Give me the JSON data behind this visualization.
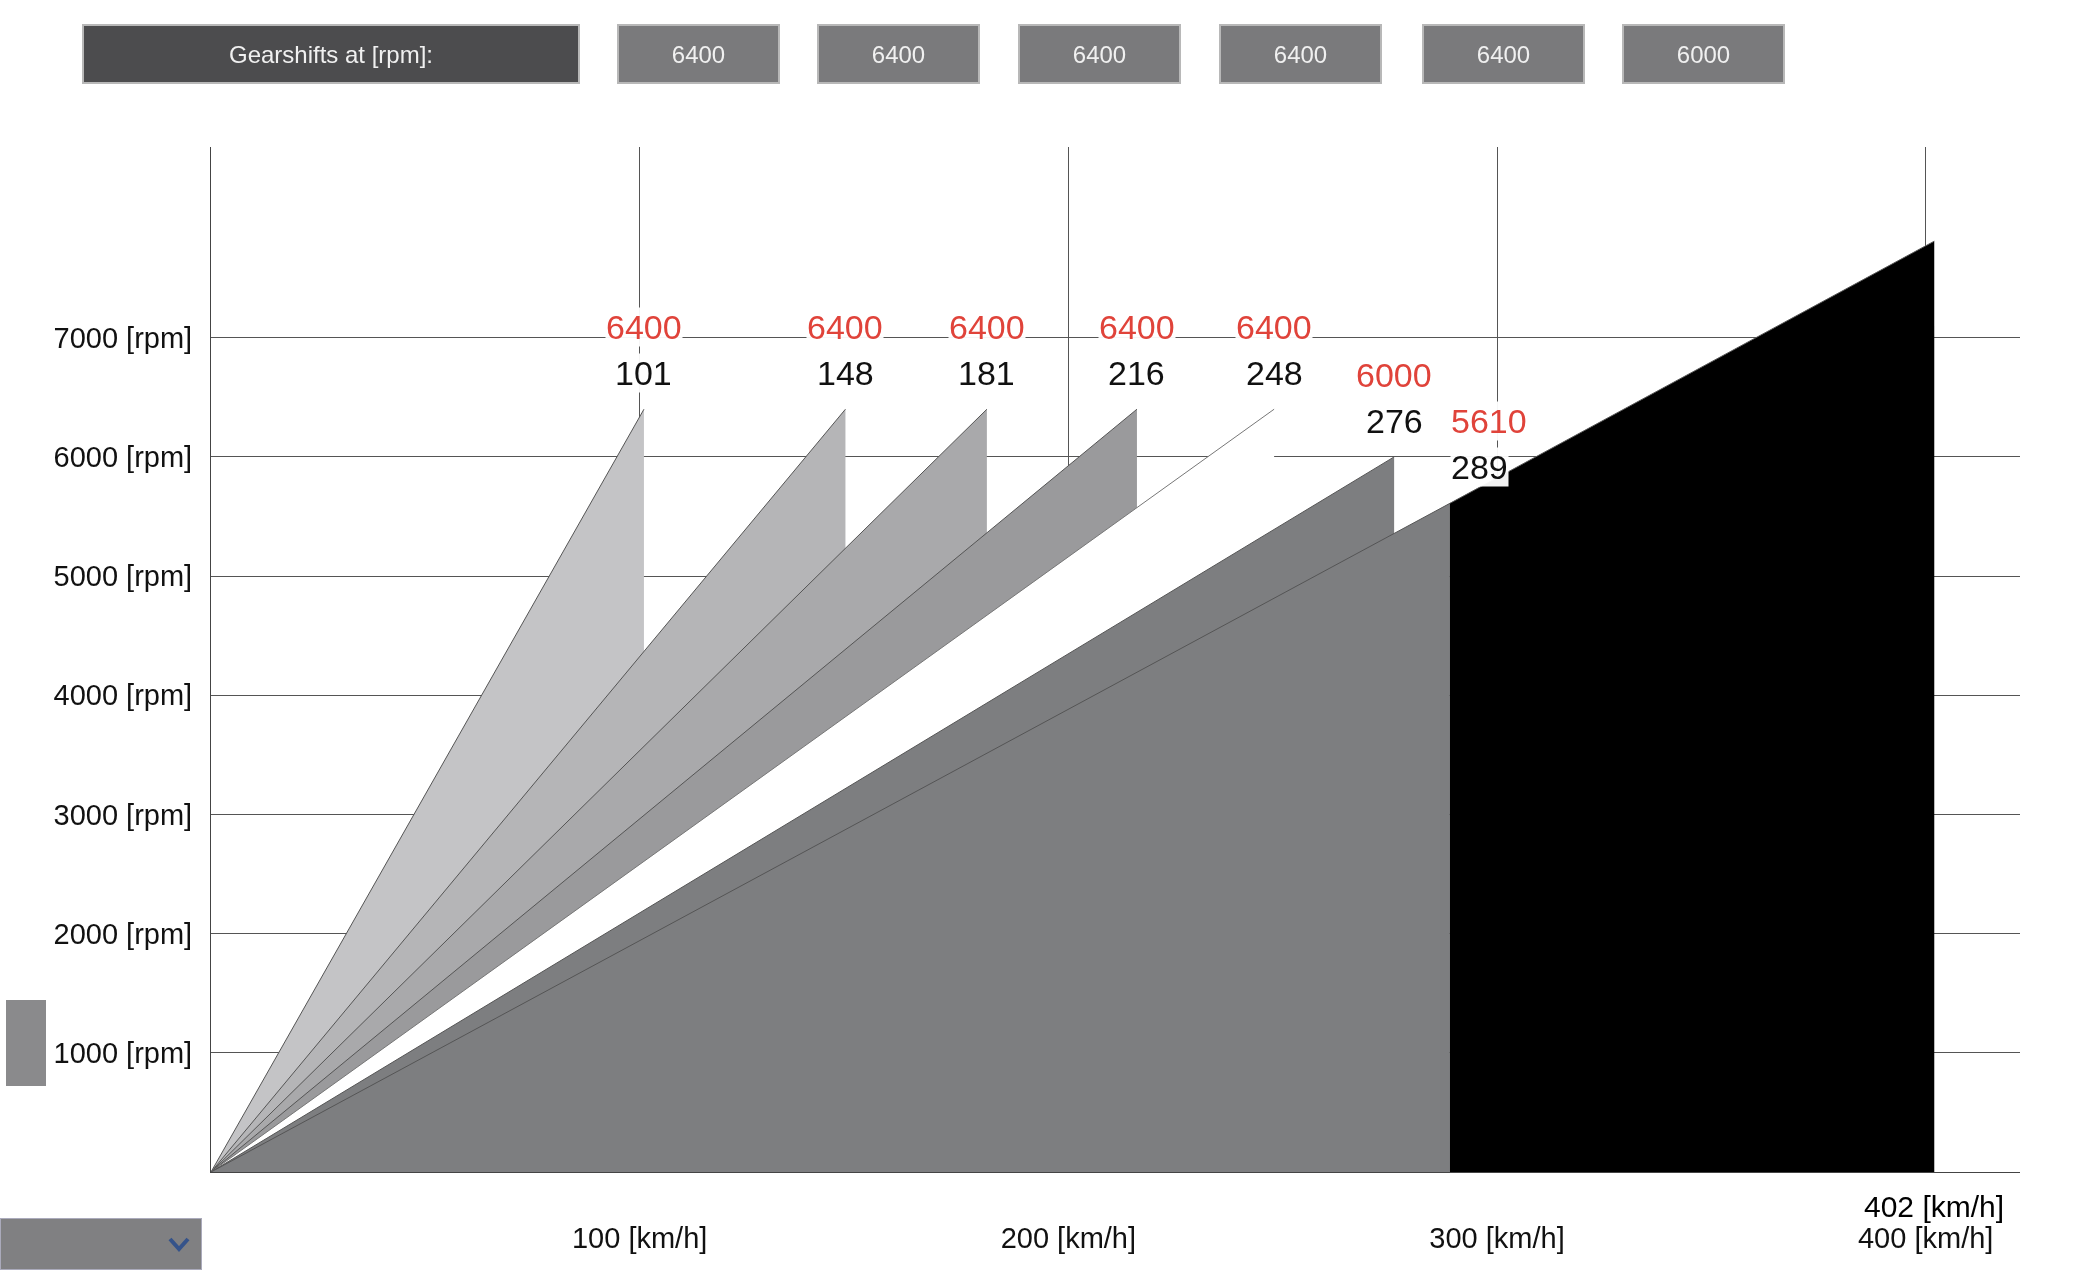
{
  "chart_data": {
    "type": "area",
    "series": [
      {
        "color": "#c4c4c6",
        "x": [
          0,
          101
        ],
        "values": [
          0,
          6400
        ]
      },
      {
        "color": "#b5b5b7",
        "x": [
          0,
          148
        ],
        "values": [
          0,
          6400
        ]
      },
      {
        "color": "#a9a9ab",
        "x": [
          0,
          181
        ],
        "values": [
          0,
          6400
        ]
      },
      {
        "color": "#9a9a9c",
        "x": [
          0,
          216
        ],
        "values": [
          0,
          6400
        ]
      },
      {
        "color": "#ffffff",
        "x": [
          0,
          248
        ],
        "values": [
          0,
          6400
        ]
      },
      {
        "color": "#7d7e80",
        "x": [
          0,
          276
        ],
        "values": [
          0,
          6000
        ]
      },
      {
        "color": "#7d7e80",
        "x": [
          0,
          289
        ],
        "values": [
          0,
          5610
        ]
      },
      {
        "color": "#000000",
        "x": [
          289,
          402
        ],
        "values": [
          5610,
          7810
        ]
      }
    ],
    "xlim": [
      0,
      422
    ],
    "xticks": [
      {
        "value": 100,
        "label": "100 [km/h]"
      },
      {
        "value": 200,
        "label": "200 [km/h]"
      },
      {
        "value": 300,
        "label": "300 [km/h]"
      },
      {
        "value": 400,
        "label": "400 [km/h]"
      }
    ],
    "ylim": [
      0,
      8600
    ],
    "yticks": [
      {
        "value": 1000,
        "label": "1000 [rpm]"
      },
      {
        "value": 2000,
        "label": "2000 [rpm]"
      },
      {
        "value": 3000,
        "label": "3000 [rpm]"
      },
      {
        "value": 4000,
        "label": "4000 [rpm]"
      },
      {
        "value": 5000,
        "label": "5000 [rpm]"
      },
      {
        "value": 6000,
        "label": "6000 [rpm]"
      },
      {
        "value": 7000,
        "label": "7000 [rpm]"
      }
    ],
    "grid": true,
    "annotations": [
      "Gearshifts at [rpm]:",
      "6400",
      "6400",
      "6400",
      "6400",
      "6400",
      "6000",
      {
        "text": "6400",
        "x": 101,
        "y": 6400
      },
      {
        "text": "101",
        "x": 101,
        "y": 6400
      },
      {
        "text": "6400",
        "x": 148,
        "y": 6400
      },
      {
        "text": "148",
        "x": 148,
        "y": 6400
      },
      {
        "text": "6400",
        "x": 181,
        "y": 6400
      },
      {
        "text": "181",
        "x": 181,
        "y": 6400
      },
      {
        "text": "6400",
        "x": 216,
        "y": 6400
      },
      {
        "text": "216",
        "x": 216,
        "y": 6400
      },
      {
        "text": "6400",
        "x": 248,
        "y": 6400
      },
      {
        "text": "248",
        "x": 248,
        "y": 6400
      },
      {
        "text": "6000",
        "x": 276,
        "y": 6000
      },
      {
        "text": "276",
        "x": 276,
        "y": 6000
      },
      {
        "text": "5610",
        "x": 289,
        "y": 5610
      },
      {
        "text": "289",
        "x": 289,
        "y": 5610
      },
      {
        "text": "402 [km/h]",
        "x": 402,
        "y": 0
      }
    ]
  }
}
